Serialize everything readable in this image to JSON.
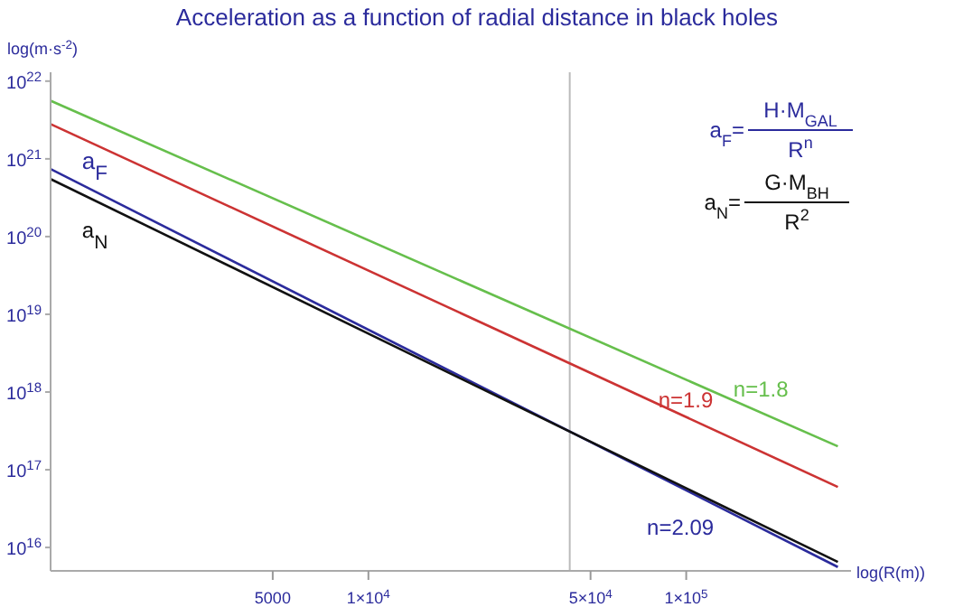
{
  "chart_data": {
    "type": "line",
    "title": "Acceleration as a function of radial distance in black holes",
    "xlabel": "log(R(m))",
    "ylabel": "log(m·s$^{-2}$)",
    "log": "xy",
    "grid": false,
    "legend": false,
    "marker": "none",
    "line_style": "solid",
    "xlim": [
      1000,
      330000
    ],
    "ylim": [
      5000000000000000.0,
      1.3e+22
    ],
    "xticks": [
      5000,
      {
        "value": 10000,
        "label": "1×10$^{4}$"
      },
      {
        "value": 50000,
        "label": "5×10$^{4}$"
      },
      {
        "value": 100000,
        "label": "1×10$^{5}$"
      }
    ],
    "yticks": [
      {
        "value": 1e+16,
        "label": "10$^{16}$"
      },
      {
        "value": 1e+17,
        "label": "10$^{17}$"
      },
      {
        "value": 1e+18,
        "label": "10$^{18}$"
      },
      {
        "value": 1e+19,
        "label": "10$^{19}$"
      },
      {
        "value": 1e+20,
        "label": "10$^{20}$"
      },
      {
        "value": 1e+21,
        "label": "10$^{21}$"
      },
      {
        "value": 1e+22,
        "label": "10$^{22}$"
      }
    ],
    "x": [
      1000,
      300000
    ],
    "series": [
      {
        "name": "n=1.8",
        "color": "#66bf4c",
        "values": [
          5.6e+21,
          2e+17
        ]
      },
      {
        "name": "n=1.9",
        "color": "#cc3333",
        "values": [
          2.8e+21,
          6e+16
        ]
      },
      {
        "name": "n=2.09",
        "color": "#2b2b9c",
        "values": [
          7.4e+20,
          5600000000000000.0
        ]
      },
      {
        "name": "a$_{N}$",
        "color": "#111111",
        "values": [
          5.5e+20,
          6500000000000000.0
        ]
      }
    ],
    "ref_lines": [
      {
        "axis": "x",
        "value": 43000,
        "color": "#bbbbbb"
      }
    ],
    "annotations": [
      "a$_{F}$",
      "a$_{F}$=",
      "H·M$_{GAL}$",
      "R$^{n}$",
      "a$_{N}$=",
      "G·M$_{BH}$",
      "R$^{2}$"
    ]
  }
}
